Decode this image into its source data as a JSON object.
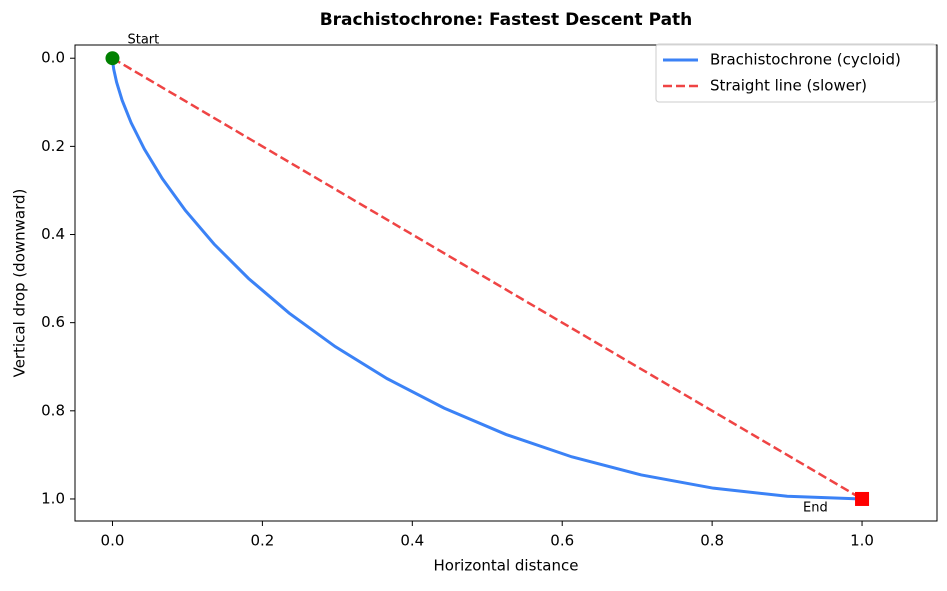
{
  "chart_data": {
    "type": "line",
    "title": "Brachistochrone: Fastest Descent Path",
    "x_label": "Horizontal distance",
    "y_label": "Vertical drop (downward)",
    "xlim": [
      -0.05,
      1.1
    ],
    "ylim": [
      -0.03,
      1.05
    ],
    "y_inverted": true,
    "xticks": [
      {
        "value": 0,
        "label": "0.0"
      },
      {
        "value": 0.2,
        "label": "0.2"
      },
      {
        "value": 0.4,
        "label": "0.4"
      },
      {
        "value": 0.6,
        "label": "0.6"
      },
      {
        "value": 0.8,
        "label": "0.8"
      },
      {
        "value": 1,
        "label": "1.0"
      }
    ],
    "yticks": [
      {
        "value": 0,
        "label": "0.0"
      },
      {
        "value": 0.2,
        "label": "0.2"
      },
      {
        "value": 0.4,
        "label": "0.4"
      },
      {
        "value": 0.6,
        "label": "0.6"
      },
      {
        "value": 0.8,
        "label": "0.8"
      },
      {
        "value": 1,
        "label": "1.0"
      }
    ],
    "legend": "upper right",
    "series": [
      {
        "name": "Brachistochrone (cycloid)",
        "color": "#3b82f6",
        "style": "solid",
        "x": [
          0,
          0.0002,
          0.0016,
          0.0055,
          0.0129,
          0.0249,
          0.0425,
          0.0664,
          0.0973,
          0.1356,
          0.1817,
          0.2356,
          0.2973,
          0.3664,
          0.4425,
          0.5249,
          0.6129,
          0.7055,
          0.8016,
          0.9002,
          1
        ],
        "values": [
          0,
          0.0062,
          0.0245,
          0.0545,
          0.0955,
          0.1464,
          0.2061,
          0.273,
          0.3455,
          0.4218,
          0.5,
          0.5782,
          0.6545,
          0.727,
          0.7939,
          0.8536,
          0.9045,
          0.9455,
          0.9755,
          0.9938,
          1
        ]
      },
      {
        "name": "Straight line (slower)",
        "color": "#ef4444",
        "style": "dashed",
        "x": [
          0,
          1
        ],
        "values": [
          0,
          1
        ]
      }
    ],
    "annotations": [
      {
        "text": "Start",
        "x": 0,
        "y": 0,
        "color": "green",
        "marker": "circle"
      },
      {
        "text": "End",
        "x": 1,
        "y": 1,
        "color": "red",
        "marker": "square"
      }
    ]
  }
}
